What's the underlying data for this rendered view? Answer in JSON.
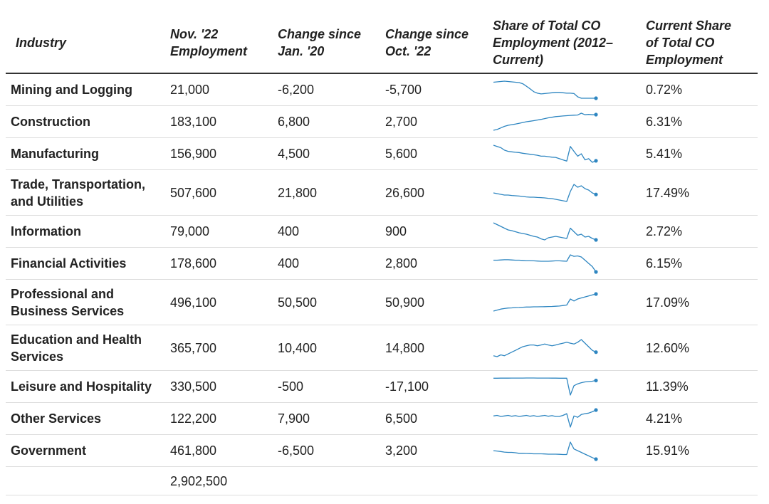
{
  "chart_data": {
    "type": "table",
    "columns": [
      "Industry",
      "Nov. '22 Employment",
      "Change since Jan. '20",
      "Change since Oct. '22",
      "Share of Total CO Employment (2012– Current)",
      "Current Share of Total CO Employment"
    ],
    "header_lines": {
      "industry": [
        "Industry"
      ],
      "employment": [
        "Nov. '22",
        "Employment"
      ],
      "change_jan": [
        "Change since",
        "Jan. '20"
      ],
      "change_oct": [
        "Change since",
        "Oct. '22"
      ],
      "share_trend": [
        "Share of Total CO",
        "Employment (2012–",
        "Current)"
      ],
      "current_share": [
        "Current Share",
        "of Total CO",
        "Employment"
      ]
    },
    "sparkline_color": "#2e86c1",
    "rows": [
      {
        "name_lines": [
          "Mining and Logging"
        ],
        "employment": "21,000",
        "change_jan20": "-6,200",
        "change_oct22": "-5,700",
        "current_share": "0.72%",
        "trend": [
          1.16,
          1.17,
          1.18,
          1.19,
          1.18,
          1.17,
          1.16,
          1.15,
          1.12,
          1.05,
          0.98,
          0.9,
          0.86,
          0.84,
          0.85,
          0.86,
          0.87,
          0.88,
          0.88,
          0.87,
          0.86,
          0.86,
          0.85,
          0.76,
          0.72,
          0.72,
          0.72,
          0.72,
          0.72
        ]
      },
      {
        "name_lines": [
          "Construction"
        ],
        "employment": "183,100",
        "change_jan20": "6,800",
        "change_oct22": "2,700",
        "current_share": "6.31%",
        "trend": [
          5.3,
          5.35,
          5.45,
          5.55,
          5.62,
          5.66,
          5.7,
          5.75,
          5.8,
          5.85,
          5.88,
          5.92,
          5.96,
          6.0,
          6.05,
          6.1,
          6.14,
          6.18,
          6.2,
          6.22,
          6.24,
          6.26,
          6.27,
          6.28,
          6.4,
          6.3,
          6.32,
          6.3,
          6.31
        ]
      },
      {
        "name_lines": [
          "Manufacturing"
        ],
        "employment": "156,900",
        "change_jan20": "4,500",
        "change_oct22": "5,600",
        "current_share": "5.41%",
        "trend": [
          6.05,
          6.0,
          5.95,
          5.85,
          5.8,
          5.78,
          5.76,
          5.75,
          5.72,
          5.7,
          5.68,
          5.66,
          5.64,
          5.6,
          5.6,
          5.58,
          5.56,
          5.55,
          5.5,
          5.45,
          5.4,
          6.0,
          5.8,
          5.6,
          5.7,
          5.45,
          5.5,
          5.35,
          5.41
        ]
      },
      {
        "name_lines": [
          "Trade, Transportation,",
          "and Utilities"
        ],
        "employment": "507,600",
        "change_jan20": "21,800",
        "change_oct22": "26,600",
        "current_share": "17.49%",
        "trend": [
          17.6,
          17.55,
          17.5,
          17.45,
          17.45,
          17.42,
          17.4,
          17.38,
          17.35,
          17.32,
          17.3,
          17.3,
          17.28,
          17.27,
          17.25,
          17.22,
          17.2,
          17.15,
          17.1,
          17.05,
          17.0,
          17.7,
          18.2,
          18.0,
          18.1,
          17.9,
          17.8,
          17.6,
          17.49
        ]
      },
      {
        "name_lines": [
          "Information"
        ],
        "employment": "79,000",
        "change_jan20": "400",
        "change_oct22": "900",
        "current_share": "2.72%",
        "trend": [
          3.2,
          3.15,
          3.1,
          3.05,
          3.0,
          2.98,
          2.95,
          2.92,
          2.9,
          2.88,
          2.85,
          2.82,
          2.8,
          2.75,
          2.72,
          2.78,
          2.8,
          2.82,
          2.8,
          2.78,
          2.76,
          3.05,
          2.95,
          2.85,
          2.88,
          2.8,
          2.82,
          2.76,
          2.72
        ]
      },
      {
        "name_lines": [
          "Financial Activities"
        ],
        "employment": "178,600",
        "change_jan20": "400",
        "change_oct22": "2,800",
        "current_share": "6.15%",
        "trend": [
          6.7,
          6.7,
          6.71,
          6.72,
          6.72,
          6.71,
          6.7,
          6.7,
          6.69,
          6.68,
          6.68,
          6.67,
          6.66,
          6.65,
          6.65,
          6.65,
          6.66,
          6.67,
          6.67,
          6.66,
          6.65,
          6.95,
          6.88,
          6.9,
          6.85,
          6.7,
          6.55,
          6.4,
          6.15
        ]
      },
      {
        "name_lines": [
          "Professional and",
          "Business Services"
        ],
        "employment": "496,100",
        "change_jan20": "50,500",
        "change_oct22": "50,900",
        "current_share": "17.09%",
        "trend": [
          15.4,
          15.5,
          15.6,
          15.65,
          15.7,
          15.72,
          15.75,
          15.76,
          15.78,
          15.8,
          15.8,
          15.82,
          15.82,
          15.83,
          15.84,
          15.85,
          15.86,
          15.88,
          15.9,
          15.95,
          16.0,
          16.6,
          16.4,
          16.6,
          16.7,
          16.8,
          16.9,
          17.0,
          17.09
        ]
      },
      {
        "name_lines": [
          "Education and Health",
          "Services"
        ],
        "employment": "365,700",
        "change_jan20": "10,400",
        "change_oct22": "14,800",
        "current_share": "12.60%",
        "trend": [
          12.4,
          12.35,
          12.45,
          12.4,
          12.5,
          12.6,
          12.7,
          12.8,
          12.9,
          12.95,
          13.0,
          13.0,
          12.95,
          13.0,
          13.05,
          13.0,
          12.95,
          13.0,
          13.05,
          13.1,
          13.15,
          13.1,
          13.05,
          13.15,
          13.3,
          13.1,
          12.9,
          12.7,
          12.6
        ]
      },
      {
        "name_lines": [
          "Leisure and Hospitality"
        ],
        "employment": "330,500",
        "change_jan20": "-500",
        "change_oct22": "-17,100",
        "current_share": "11.39%",
        "trend": [
          12.0,
          12.0,
          12.01,
          12.02,
          12.02,
          12.03,
          12.03,
          12.04,
          12.04,
          12.05,
          12.05,
          12.05,
          12.04,
          12.04,
          12.03,
          12.03,
          12.02,
          12.02,
          12.0,
          12.0,
          12.0,
          7.5,
          10.0,
          10.5,
          10.8,
          11.0,
          11.1,
          11.2,
          11.39
        ]
      },
      {
        "name_lines": [
          "Other Services"
        ],
        "employment": "122,200",
        "change_jan20": "7,900",
        "change_oct22": "6,500",
        "current_share": "4.21%",
        "trend": [
          4.0,
          4.02,
          3.98,
          4.0,
          4.02,
          3.99,
          4.01,
          3.98,
          4.0,
          4.02,
          3.99,
          4.01,
          3.98,
          4.0,
          4.02,
          3.99,
          4.01,
          3.98,
          3.98,
          4.02,
          4.08,
          3.6,
          4.0,
          3.95,
          4.05,
          4.08,
          4.1,
          4.15,
          4.21
        ]
      },
      {
        "name_lines": [
          "Government"
        ],
        "employment": "461,800",
        "change_jan20": "-6,500",
        "change_oct22": "3,200",
        "current_share": "15.91%",
        "trend": [
          16.4,
          16.38,
          16.35,
          16.32,
          16.3,
          16.3,
          16.28,
          16.25,
          16.25,
          16.24,
          16.23,
          16.22,
          16.22,
          16.22,
          16.21,
          16.2,
          16.2,
          16.2,
          16.19,
          16.18,
          16.18,
          16.9,
          16.5,
          16.4,
          16.3,
          16.2,
          16.1,
          16.0,
          15.91
        ]
      }
    ],
    "total_employment": "2,902,500"
  }
}
